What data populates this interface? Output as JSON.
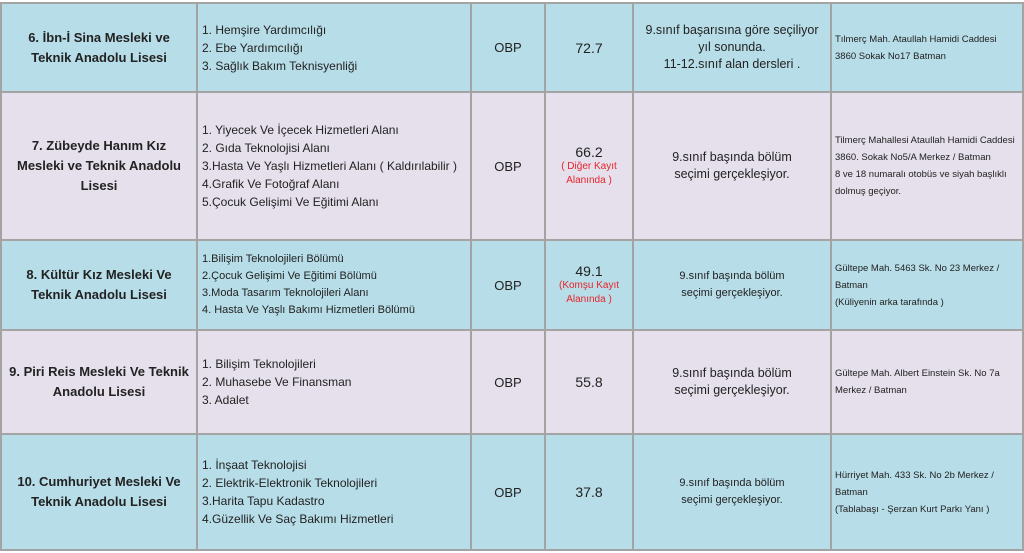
{
  "colors": {
    "row_blue": "#b7dde8",
    "row_lavender": "#e5e0ec",
    "note_red": "#e8232a",
    "border": "#a3a3a3"
  },
  "rows": [
    {
      "name": "6. İbn-İ Sina Mesleki ve Teknik Anadolu Lisesi",
      "departments": [
        "1. Hemşire Yardımcılığı",
        "2. Ebe Yardımcılığı",
        "3. Sağlık Bakım Teknisyenliği"
      ],
      "type": "OBP",
      "score": "72.7",
      "score_note": "",
      "selection": [
        "9.sınıf başarısına göre seçiliyor",
        "yıl sonunda.",
        "11-12.sınıf alan dersleri ."
      ],
      "address": [
        "Tılmerç Mah. Ataullah Hamidi Caddesi 3860 Sokak No17 Batman"
      ]
    },
    {
      "name": "7. Zübeyde Hanım Kız Mesleki ve Teknik Anadolu Lisesi",
      "departments": [
        "1. Yiyecek Ve İçecek Hizmetleri Alanı",
        "2. Gıda Teknolojisi Alanı",
        "3.Hasta Ve Yaşlı Hizmetleri Alanı ( Kaldırılabilir )",
        "4.Grafik Ve Fotoğraf Alanı",
        "5.Çocuk Gelişimi Ve Eğitimi Alanı"
      ],
      "type": "OBP",
      "score": "66.2",
      "score_note": "( Diğer Kayıt Alanında )",
      "selection": [
        "9.sınıf başında bölüm seçimi gerçekleşiyor."
      ],
      "address": [
        "Tilmerç Mahallesi Ataullah Hamidi Caddesi 3860. Sokak No5/A Merkez / Batman",
        "8 ve 18 numaralı otobüs ve siyah başlıklı dolmuş geçiyor."
      ]
    },
    {
      "name": "8. Kültür Kız Mesleki Ve Teknik Anadolu Lisesi",
      "departments": [
        "1.Bilişim Teknolojileri Bölümü",
        "2.Çocuk Gelişimi Ve Eğitimi Bölümü",
        "3.Moda Tasarım Teknolojileri Alanı",
        "4. Hasta Ve Yaşlı Bakımı Hizmetleri Bölümü"
      ],
      "type": "OBP",
      "score": "49.1",
      "score_note": "(Komşu Kayıt Alanında )",
      "selection": [
        "9.sınıf başında bölüm seçimi gerçekleşiyor."
      ],
      "address": [
        "Gültepe Mah. 5463 Sk. No 23 Merkez / Batman",
        "(Küliyenin arka tarafında )"
      ]
    },
    {
      "name": "9. Piri Reis Mesleki Ve Teknik Anadolu Lisesi",
      "departments": [
        "1. Bilişim Teknolojileri",
        "2. Muhasebe Ve Finansman",
        "3. Adalet"
      ],
      "type": "OBP",
      "score": "55.8",
      "score_note": "",
      "selection": [
        "9.sınıf başında bölüm seçimi gerçekleşiyor."
      ],
      "address": [
        "Gültepe Mah. Albert Einstein Sk. No 7a Merkez / Batman"
      ]
    },
    {
      "name": "10. Cumhuriyet Mesleki Ve Teknik Anadolu Lisesi",
      "departments": [
        "1. İnşaat Teknolojisi",
        "2. Elektrik-Elektronik Teknolojileri",
        "3.Harita Tapu Kadastro",
        "4.Güzellik Ve Saç Bakımı Hizmetleri"
      ],
      "type": "OBP",
      "score": "37.8",
      "score_note": "",
      "selection": [
        "9.sınıf başında bölüm seçimi gerçekleşiyor."
      ],
      "address": [
        "Hürriyet Mah. 433 Sk.  No 2b Merkez / Batman",
        "(Tablabaşı - Şerzan Kurt  Parkı Yanı )"
      ]
    }
  ]
}
